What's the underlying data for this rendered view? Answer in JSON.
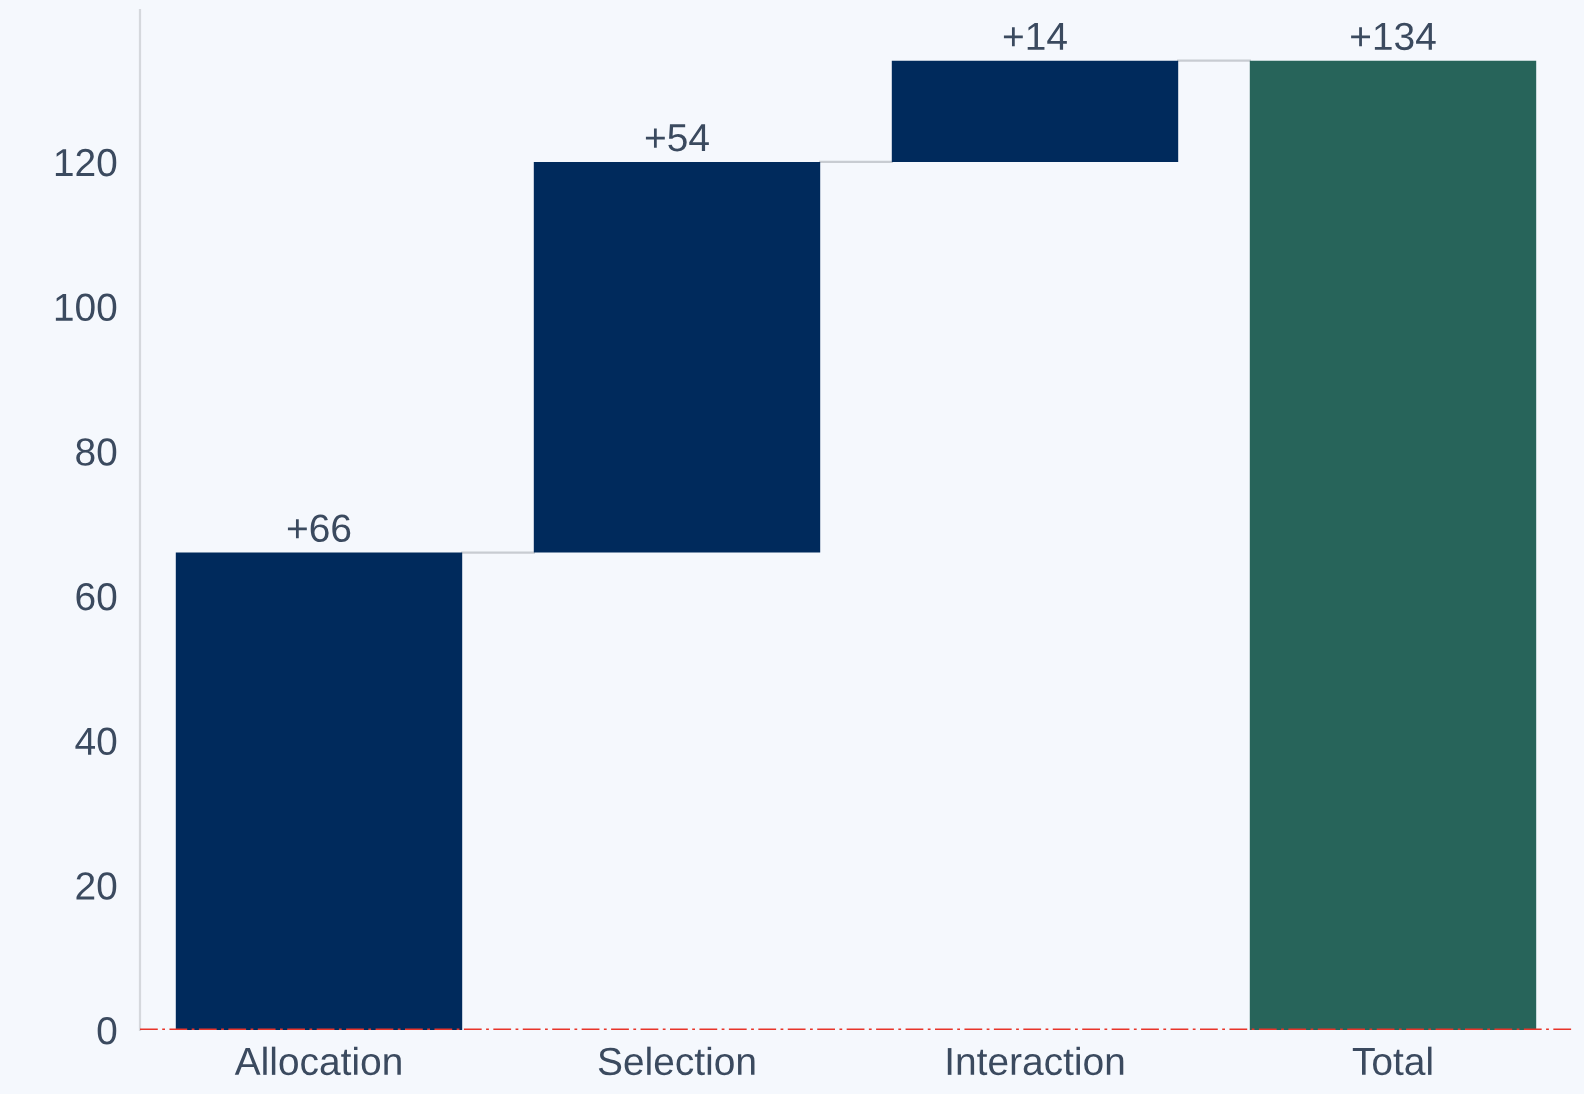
{
  "chart_data": {
    "type": "bar",
    "categories": [
      "Allocation",
      "Selection",
      "Interaction",
      "Total"
    ],
    "values": [
      66,
      54,
      14,
      134
    ],
    "base": [
      0,
      66,
      120,
      0
    ],
    "colors": [
      "#002a5c",
      "#002a5c",
      "#002a5c",
      "#27645a"
    ],
    "value_labels": [
      "+66",
      "+54",
      "+14",
      "+134"
    ],
    "ylim": [
      0,
      141
    ],
    "yticks": [
      0,
      20,
      40,
      60,
      80,
      100,
      120
    ],
    "ref_lines": [
      {
        "axis": "y",
        "value": 0,
        "label": null,
        "color": "#e8342a",
        "line_style": "dashed"
      }
    ],
    "grid": false,
    "legend": false
  }
}
